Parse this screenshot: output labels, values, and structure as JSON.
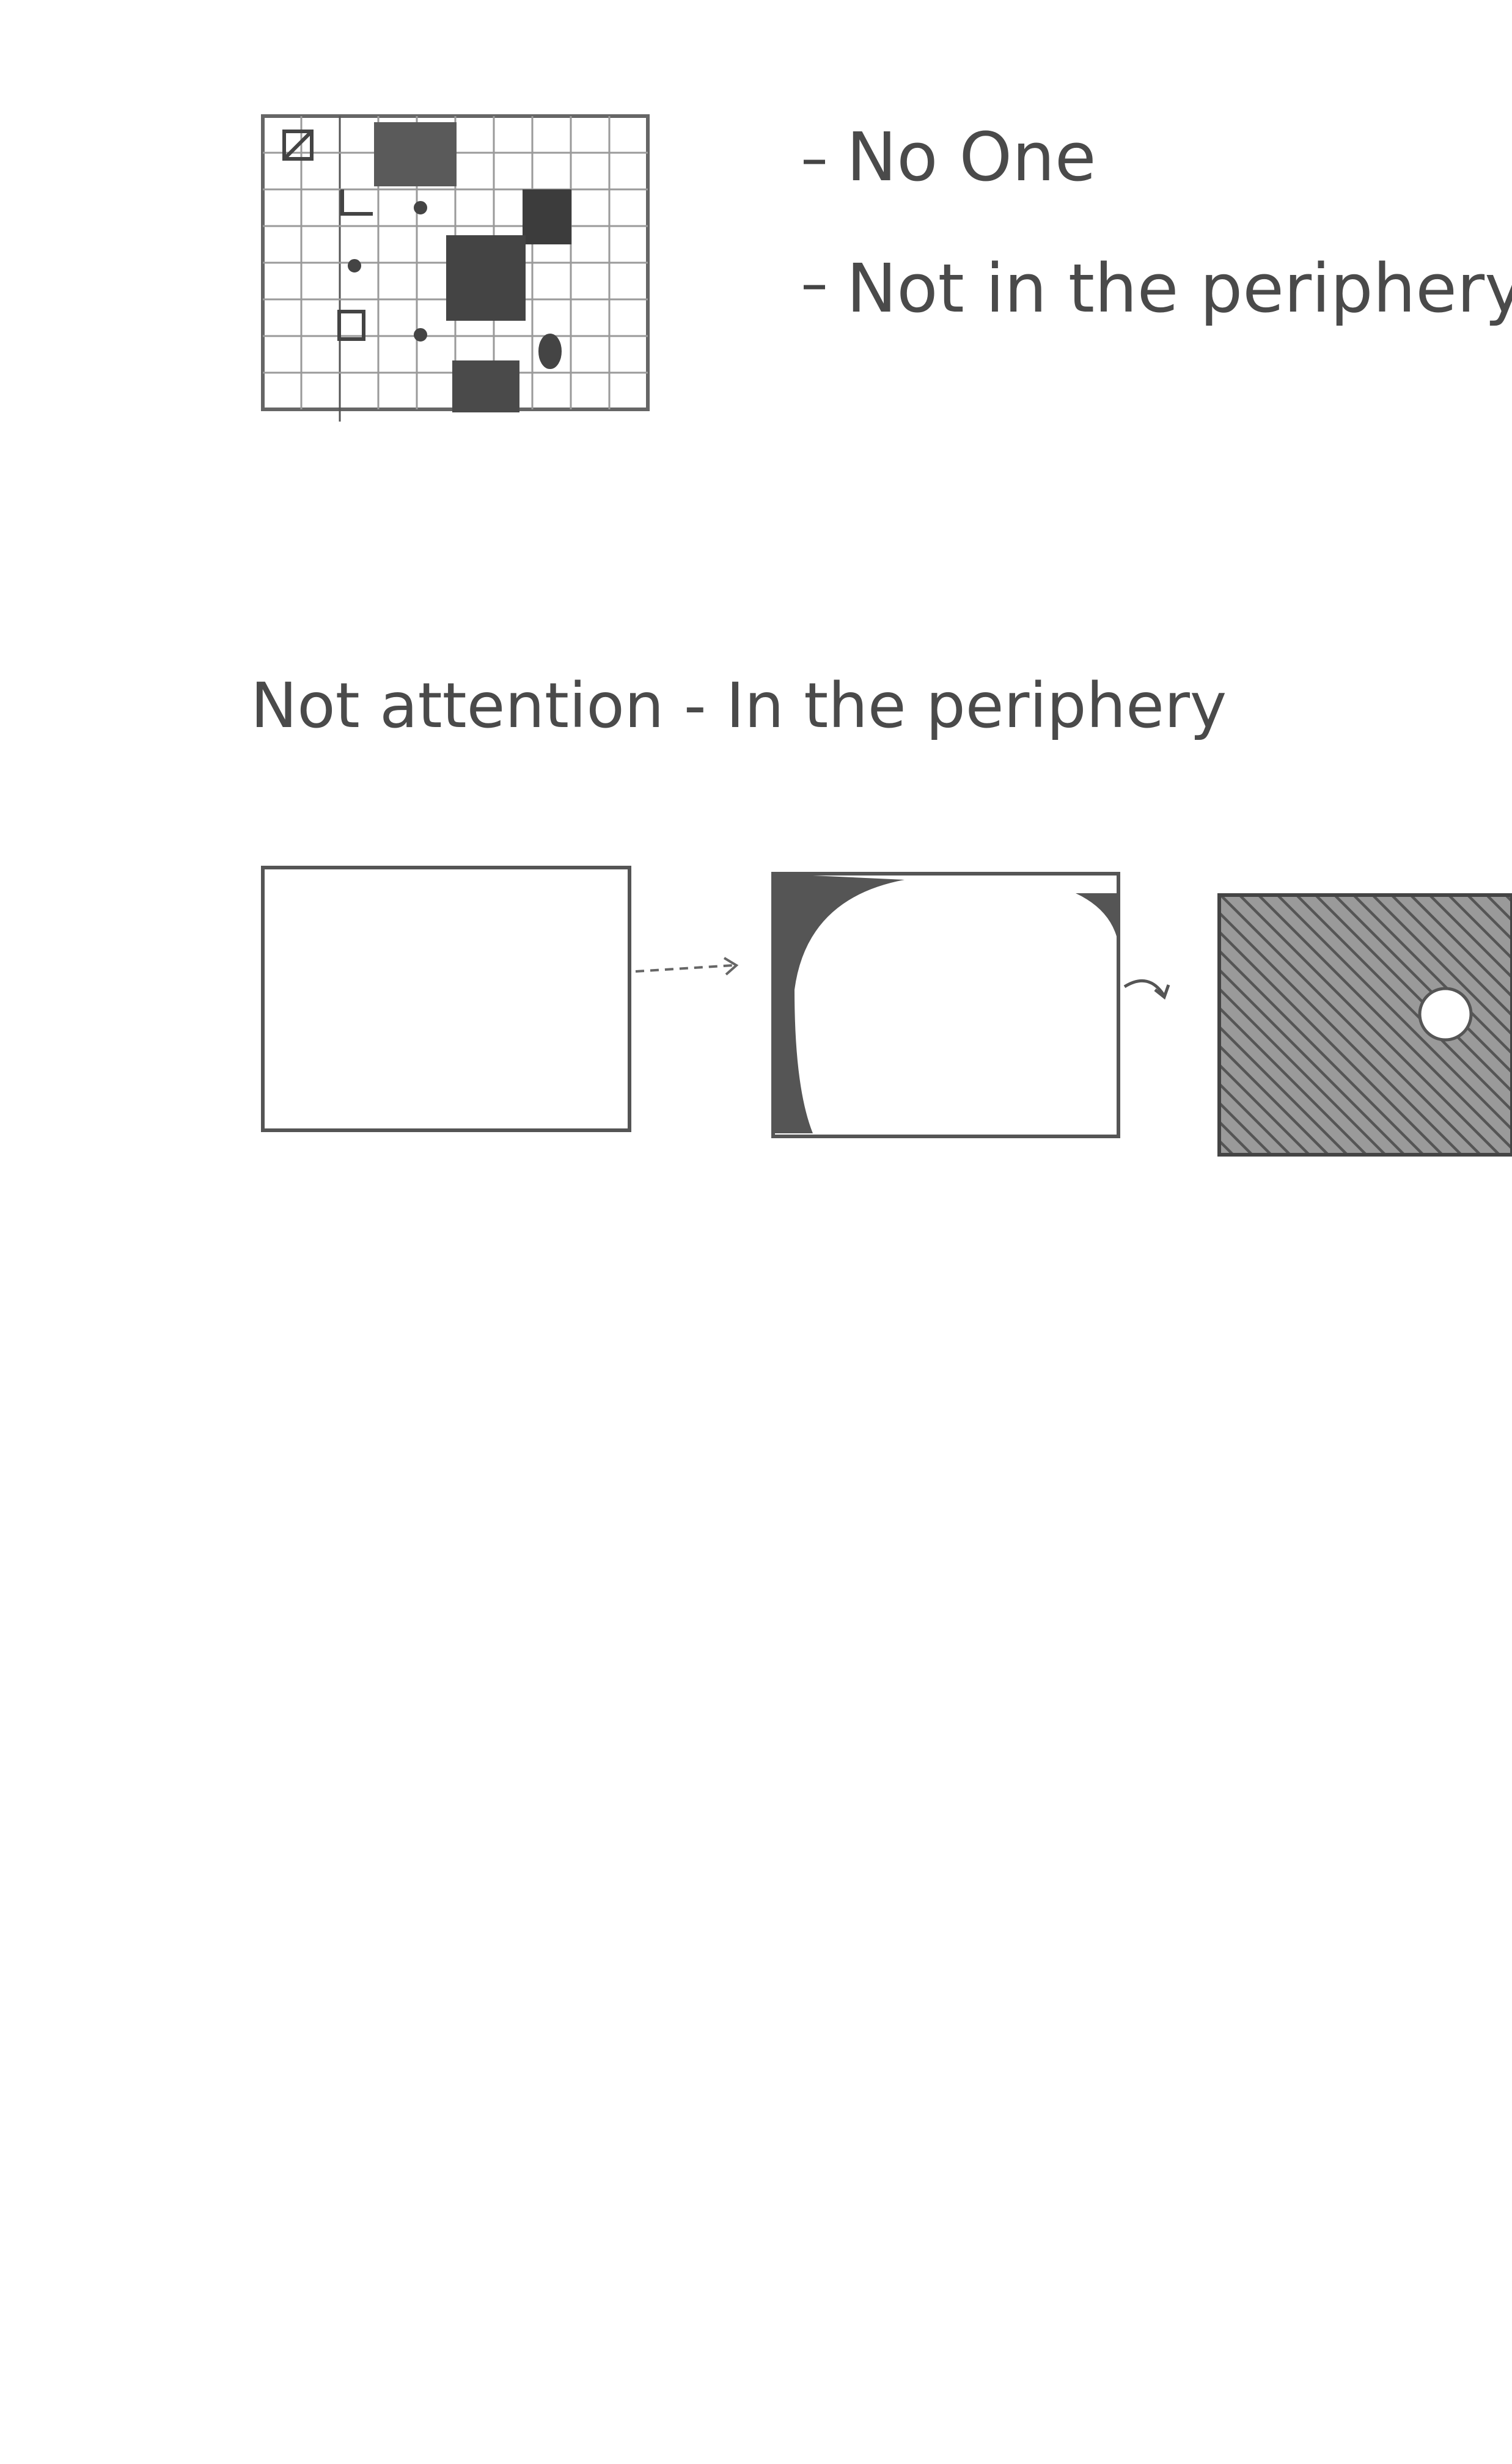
{
  "notes": [
    "No One",
    "Not in the periphery"
  ],
  "heading": "Not attention - In the periphery"
}
